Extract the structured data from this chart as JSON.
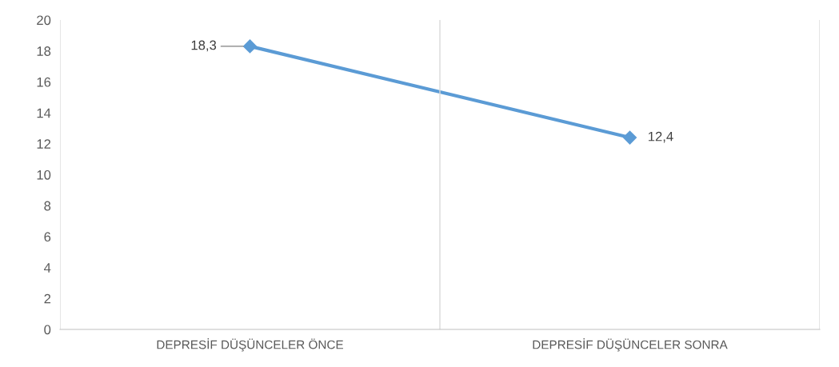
{
  "chart_data": {
    "type": "line",
    "categories": [
      "DEPRESİF DÜŞÜNCELER ÖNCE",
      "DEPRESİF DÜŞÜNCELER SONRA"
    ],
    "series": [
      {
        "color": "#5b9bd5",
        "values": [
          18.3,
          12.4
        ],
        "value_labels": [
          "18,3",
          "12,4"
        ]
      }
    ],
    "ylim": [
      0,
      20
    ],
    "yticks": [
      0,
      2,
      4,
      6,
      8,
      10,
      12,
      14,
      16,
      18,
      20
    ],
    "grid": "x",
    "marker": "diamond",
    "line_style": "solid"
  }
}
